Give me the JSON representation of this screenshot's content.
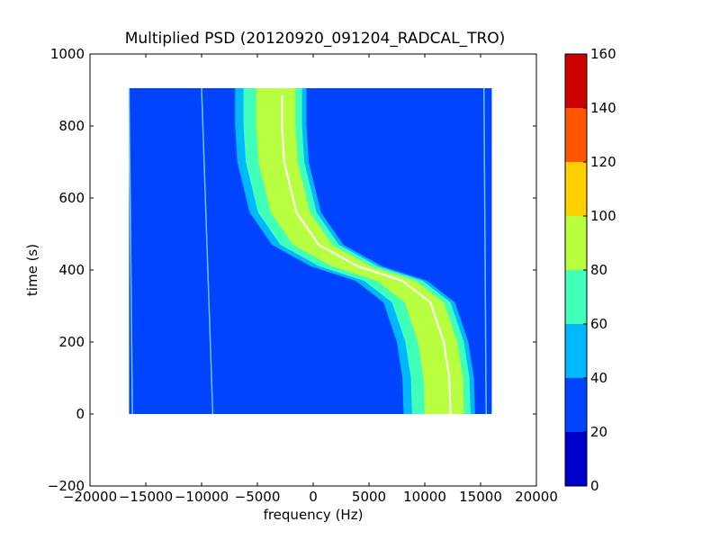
{
  "chart_data": {
    "type": "heatmap",
    "title": "Multiplied PSD (20120920_091204_RADCAL_TRO)",
    "xlabel": "frequency (Hz)",
    "ylabel": "time (s)",
    "xlim": [
      -20000,
      20000
    ],
    "ylim": [
      -200,
      1000
    ],
    "xticks": [
      -20000,
      -15000,
      -10000,
      -5000,
      0,
      5000,
      10000,
      15000,
      20000
    ],
    "xtick_labels": [
      "−20000",
      "−15000",
      "−10000",
      "−5000",
      "0",
      "5000",
      "10000",
      "15000",
      "20000"
    ],
    "yticks": [
      -200,
      0,
      200,
      400,
      600,
      800,
      1000
    ],
    "ytick_labels": [
      "−200",
      "0",
      "200",
      "400",
      "600",
      "800",
      "1000"
    ],
    "grid": false,
    "data_extent": {
      "x": [
        -16500,
        16000
      ],
      "y": [
        0,
        905
      ]
    },
    "background_level": [
      20,
      40
    ],
    "colorbar": {
      "levels": [
        0,
        20,
        40,
        60,
        80,
        100,
        120,
        140,
        160
      ],
      "tick_labels": [
        "0",
        "20",
        "40",
        "60",
        "80",
        "100",
        "120",
        "140",
        "160"
      ],
      "colors": [
        "#0000cc",
        "#0044ff",
        "#00b8ff",
        "#40ffb8",
        "#b8ff40",
        "#ffd000",
        "#ff5500",
        "#cc0000"
      ]
    },
    "signal_trace": {
      "description_points_xy": [
        [
          -2800,
          900
        ],
        [
          -2800,
          800
        ],
        [
          -2600,
          700
        ],
        [
          -1500,
          560
        ],
        [
          500,
          470
        ],
        [
          4000,
          410
        ],
        [
          8000,
          370
        ],
        [
          10500,
          310
        ],
        [
          11700,
          200
        ],
        [
          12200,
          100
        ],
        [
          12300,
          0
        ]
      ],
      "band_halfwidth_hz": 4000,
      "core_level": [
        80,
        100
      ]
    },
    "tones": [
      {
        "x_at_0": -9000,
        "x_at_905": -10000
      },
      {
        "x_at_0": -16200,
        "x_at_905": -16500
      },
      {
        "x_at_0": 15500,
        "x_at_905": 15300
      }
    ]
  }
}
